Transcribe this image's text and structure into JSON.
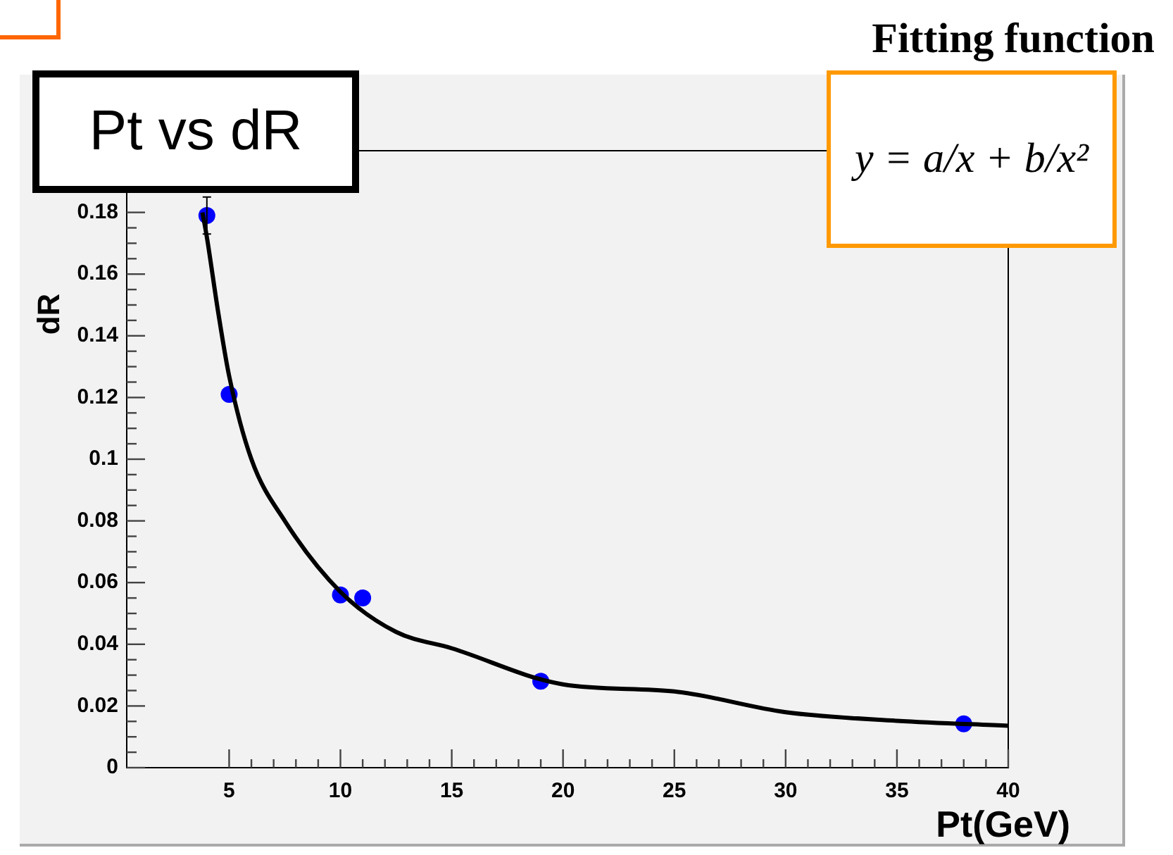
{
  "chart_data": {
    "type": "scatter",
    "title": "Pt vs dR",
    "xlabel": "Pt(GeV)",
    "ylabel": "dR",
    "annotations": [
      "Fitting function",
      "y = a/x + b/x²"
    ],
    "xlim": [
      0.4,
      40
    ],
    "xticks": [
      5,
      10,
      15,
      20,
      25,
      30,
      35,
      40
    ],
    "ylim": [
      0,
      0.2
    ],
    "yticks": [
      0,
      0.02,
      0.04,
      0.06,
      0.08,
      0.1,
      0.12,
      0.14,
      0.16,
      0.18
    ],
    "grid": false,
    "legend": false,
    "marker": "circle",
    "series": [
      {
        "type": "line",
        "color": "#000000",
        "line_style": "solid",
        "marker": "none",
        "x": [
          3.8,
          4,
          4.5,
          5,
          6,
          7.5,
          10,
          12.5,
          15,
          20,
          25,
          30,
          35,
          40
        ],
        "values": [
          0.18,
          0.172,
          0.148,
          0.127,
          0.1,
          0.08,
          0.057,
          0.044,
          0.0387,
          0.027,
          0.0247,
          0.018,
          0.0152,
          0.0136
        ]
      },
      {
        "type": "scatter",
        "color": "#0000ff",
        "x": [
          4,
          5,
          10,
          11,
          19,
          38
        ],
        "values": [
          0.179,
          0.121,
          0.056,
          0.055,
          0.028,
          0.0142
        ],
        "errors": [
          0.006,
          null,
          null,
          null,
          null,
          null
        ]
      }
    ]
  }
}
